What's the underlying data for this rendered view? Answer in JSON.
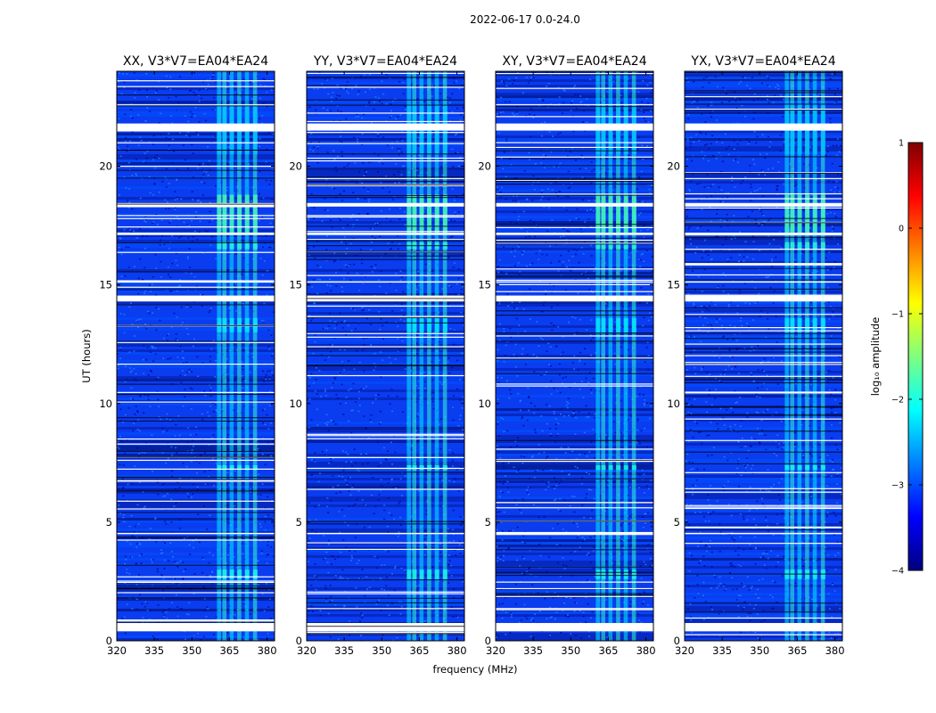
{
  "figure_title": "2022-06-17 0.0-24.0",
  "chart_data": [
    {
      "type": "heatmap",
      "title": "XX, V3*V7=EA04*EA24",
      "xlabel": "",
      "ylabel": "UT (hours)",
      "xlim": [
        320,
        383
      ],
      "ylim": [
        0,
        24
      ],
      "xticks": [
        320,
        335,
        350,
        365,
        380
      ],
      "yticks": [
        0,
        5,
        10,
        15,
        20
      ],
      "rfi_band_mhz": [
        360,
        378
      ],
      "flagged_hours": [
        [
          0.4,
          0.75
        ],
        [
          21.5,
          21.8
        ],
        [
          18.3,
          18.45
        ],
        [
          14.3,
          14.55
        ],
        [
          17.1,
          17.2
        ],
        [
          15.1,
          15.15
        ],
        [
          4.5,
          4.55
        ]
      ]
    },
    {
      "type": "heatmap",
      "title": "YY, V3*V7=EA04*EA24",
      "xlabel": "frequency (MHz)",
      "ylabel": "",
      "xlim": [
        320,
        383
      ],
      "ylim": [
        0,
        24
      ],
      "xticks": [
        320,
        335,
        350,
        365,
        380
      ],
      "yticks": [
        0,
        5,
        10,
        15,
        20
      ],
      "rfi_band_mhz": [
        360,
        378
      ],
      "flagged_hours": [
        [
          0.4,
          0.75
        ],
        [
          21.5,
          21.8
        ],
        [
          18.3,
          18.45
        ],
        [
          14.3,
          14.55
        ],
        [
          17.1,
          17.2
        ],
        [
          15.1,
          15.15
        ],
        [
          4.5,
          4.55
        ]
      ]
    },
    {
      "type": "heatmap",
      "title": "XY, V3*V7=EA04*EA24",
      "xlabel": "",
      "ylabel": "",
      "xlim": [
        320,
        383
      ],
      "ylim": [
        0,
        24
      ],
      "xticks": [
        320,
        335,
        350,
        365,
        380
      ],
      "yticks": [
        0,
        5,
        10,
        15,
        20
      ],
      "rfi_band_mhz": [
        360,
        378
      ],
      "flagged_hours": [
        [
          0.4,
          0.75
        ],
        [
          21.5,
          21.8
        ],
        [
          18.3,
          18.45
        ],
        [
          14.3,
          14.55
        ],
        [
          17.1,
          17.2
        ],
        [
          15.1,
          15.15
        ],
        [
          4.5,
          4.55
        ]
      ]
    },
    {
      "type": "heatmap",
      "title": "YX, V3*V7=EA04*EA24",
      "xlabel": "",
      "ylabel": "",
      "xlim": [
        320,
        383
      ],
      "ylim": [
        0,
        24
      ],
      "xticks": [
        320,
        335,
        350,
        365,
        380
      ],
      "yticks": [
        0,
        5,
        10,
        15,
        20
      ],
      "rfi_band_mhz": [
        360,
        378
      ],
      "flagged_hours": [
        [
          0.4,
          0.75
        ],
        [
          21.5,
          21.8
        ],
        [
          18.3,
          18.45
        ],
        [
          14.3,
          14.55
        ],
        [
          17.1,
          17.2
        ],
        [
          15.1,
          15.15
        ],
        [
          4.5,
          4.55
        ]
      ]
    }
  ],
  "colorbar": {
    "label": "log₁₀ amplitude",
    "range": [
      -4,
      1
    ],
    "ticks": [
      -4,
      -3,
      -2,
      -1,
      0,
      1
    ],
    "tick_labels": [
      "−4",
      "−3",
      "−2",
      "−1",
      "0",
      "1"
    ],
    "colormap": "jet",
    "colors": [
      "#00007f",
      "#0000ff",
      "#007fff",
      "#00ffff",
      "#7fff7f",
      "#ffff00",
      "#ff7f00",
      "#ff0000",
      "#7f0000"
    ]
  },
  "colors": {
    "flag_gap": "#ffffff",
    "background_level_hex": "#0a3cf0"
  }
}
